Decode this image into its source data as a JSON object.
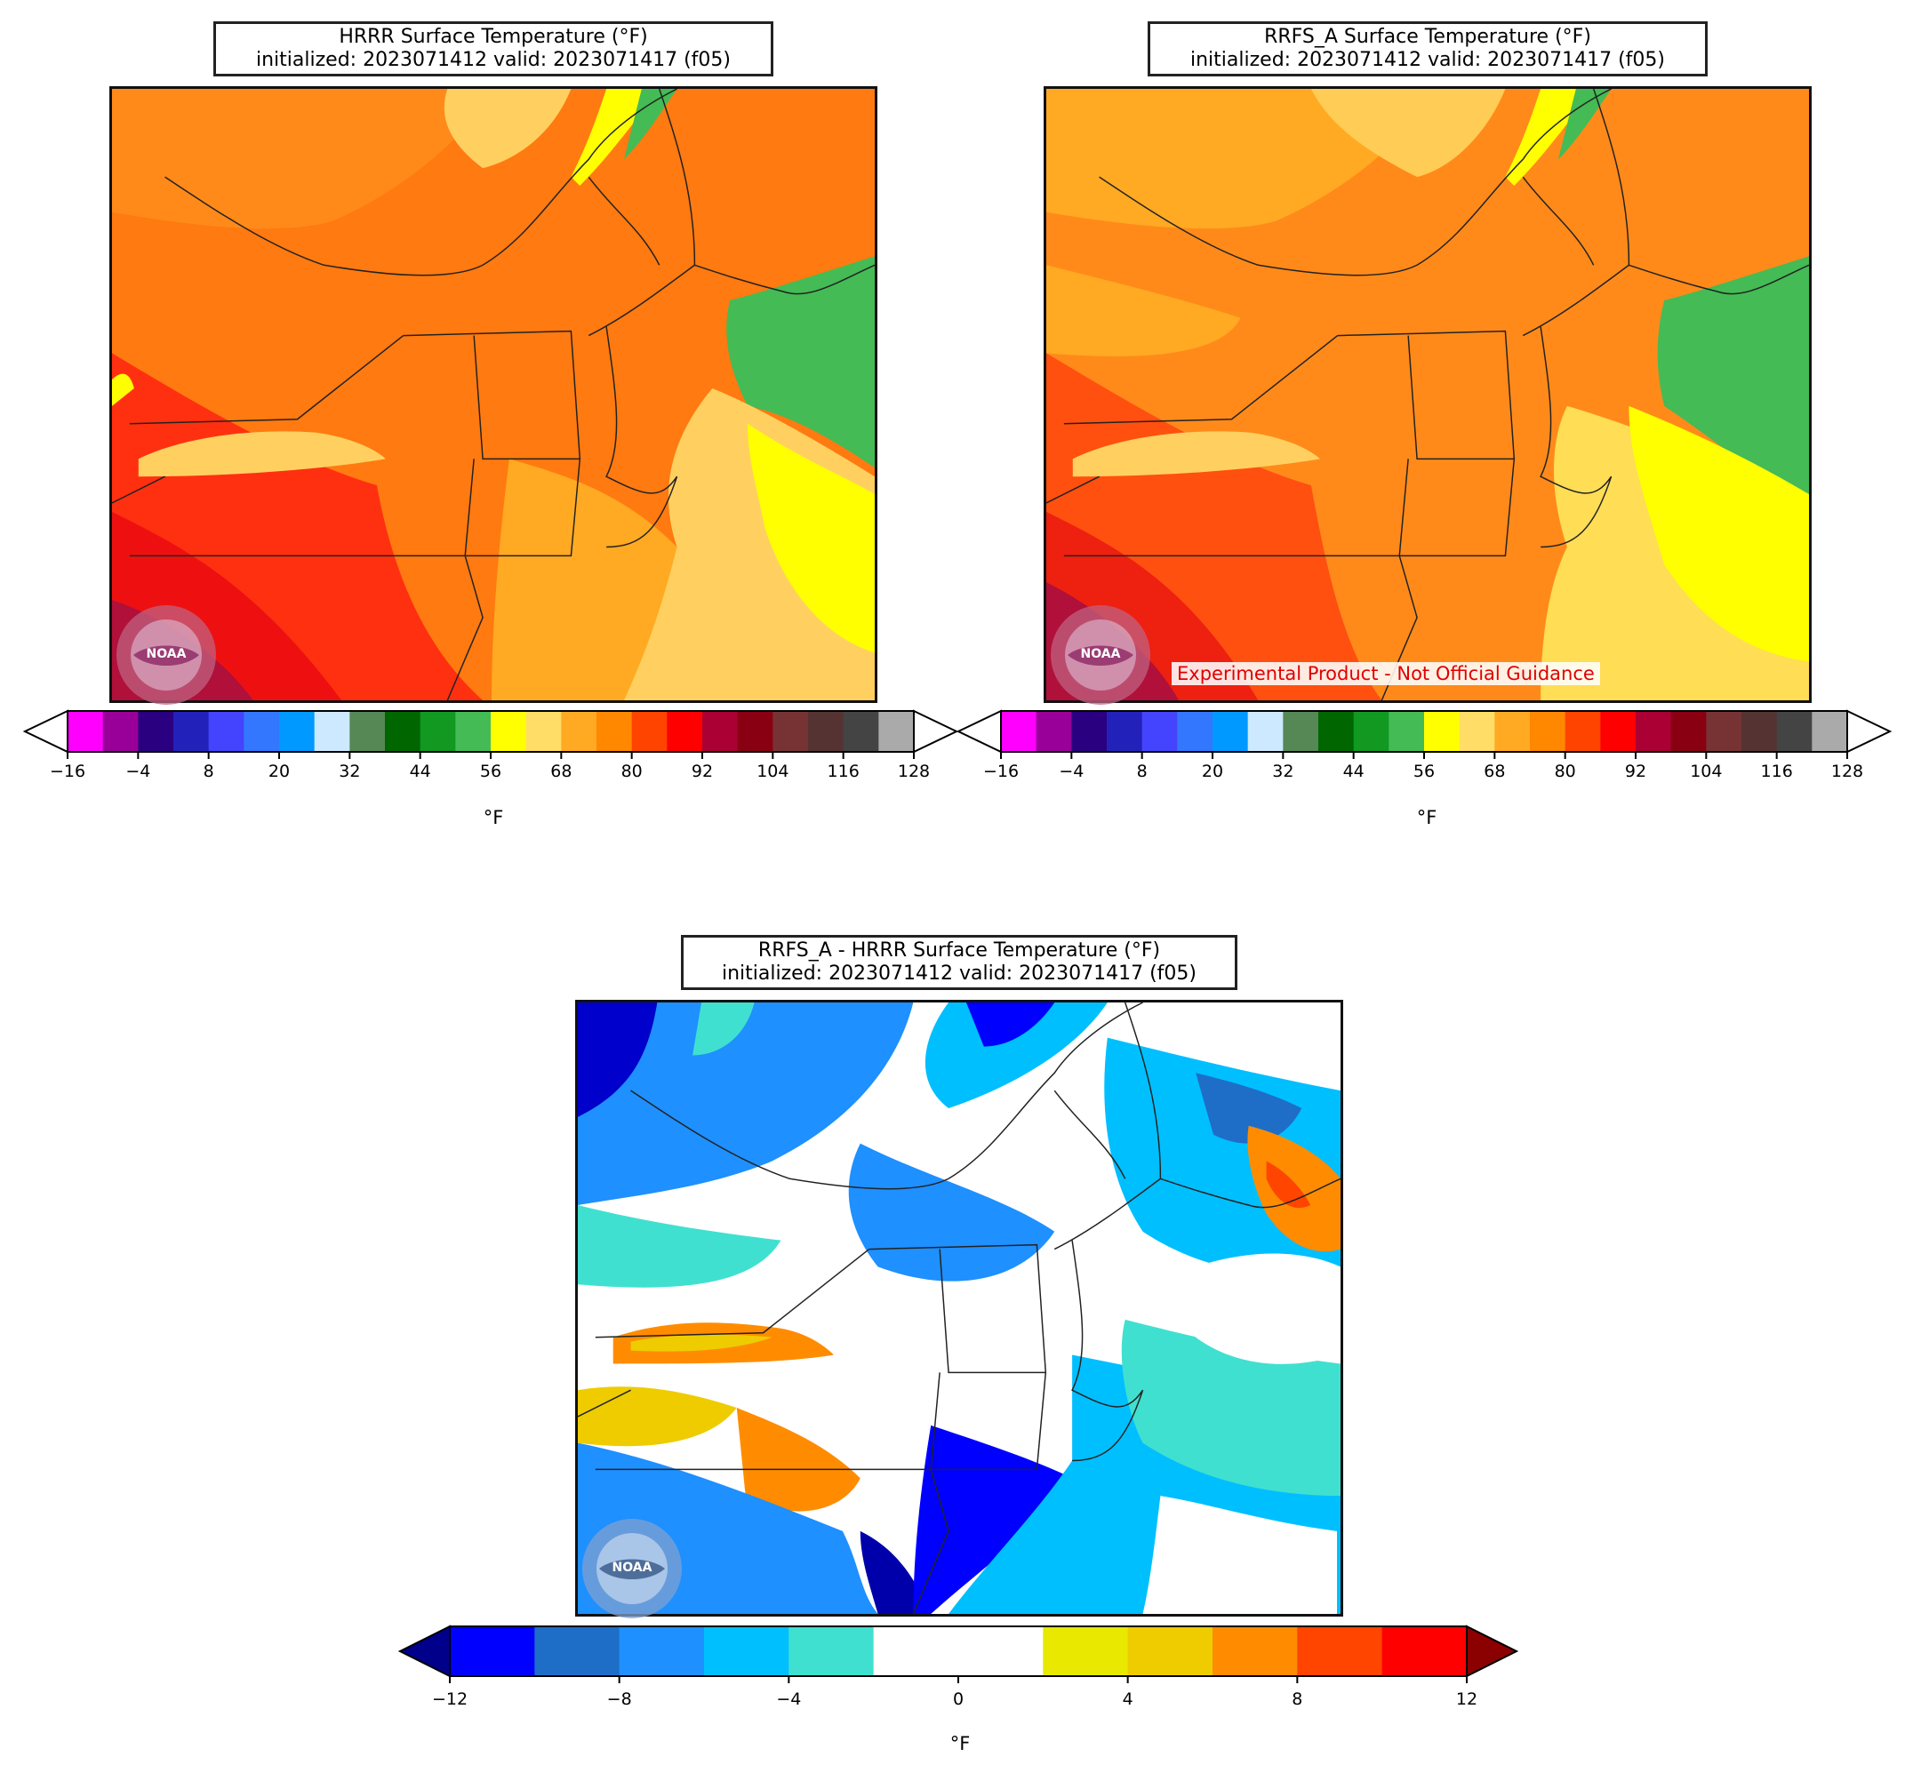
{
  "panels": {
    "hrrr": {
      "title_line1": "HRRR Surface Temperature (°F)",
      "title_line2": "initialized: 2023071412 valid: 2023071417 (f05)"
    },
    "rrfs": {
      "title_line1": "RRFS_A Surface Temperature (°F)",
      "title_line2": "initialized: 2023071412 valid: 2023071417 (f05)",
      "banner": "Experimental Product - Not Official Guidance"
    },
    "diff": {
      "title_line1": "RRFS_A - HRRR Surface Temperature (°F)",
      "title_line2": "initialized: 2023071412 valid: 2023071417 (f05)"
    }
  },
  "colorbars": {
    "temp": {
      "unit": "°F",
      "ticks": [
        "−16",
        "−4",
        "8",
        "20",
        "32",
        "44",
        "56",
        "68",
        "80",
        "92",
        "104",
        "116",
        "128"
      ],
      "colors": [
        "#ff00ff",
        "#990099",
        "#2b0080",
        "#2222bb",
        "#4444ff",
        "#3377ff",
        "#0099ff",
        "#cce9ff",
        "#558855",
        "#006600",
        "#119922",
        "#44bb55",
        "#ffff00",
        "#ffdd66",
        "#ffaa22",
        "#ff8800",
        "#ff4400",
        "#ff0000",
        "#aa0033",
        "#880011",
        "#773333",
        "#553333",
        "#444444",
        "#aaaaaa"
      ],
      "under_color": "#ffffff",
      "over_color": "#ffffff"
    },
    "diff": {
      "unit": "°F",
      "ticks": [
        "−12",
        "−8",
        "−4",
        "0",
        "4",
        "8",
        "12"
      ],
      "colors": [
        "#0000ff",
        "#1e6ec8",
        "#1e90ff",
        "#00bfff",
        "#40e0d0",
        "#ffffff",
        "#ffffff",
        "#e8e800",
        "#eecc00",
        "#ff8c00",
        "#ff4500",
        "#ff0000"
      ],
      "under_color": "#00008b",
      "over_color": "#8b0000"
    }
  },
  "logo": {
    "text": "NOAA",
    "icon": "noaa-seal-icon"
  }
}
